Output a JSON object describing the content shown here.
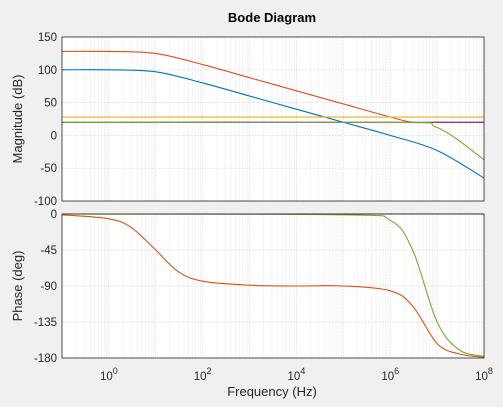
{
  "chart_data": {
    "type": "line",
    "title": "Bode Diagram",
    "xlabel": "Frequency  (Hz)",
    "x_scale": "log",
    "xlim": [
      0.1,
      100000000
    ],
    "x_ticks": [
      {
        "value": 1,
        "base": "10",
        "exp": "0"
      },
      {
        "value": 100,
        "base": "10",
        "exp": "2"
      },
      {
        "value": 10000,
        "base": "10",
        "exp": "4"
      },
      {
        "value": 1000000,
        "base": "10",
        "exp": "6"
      },
      {
        "value": 100000000,
        "base": "10",
        "exp": "8"
      }
    ],
    "grid": "minor",
    "panels": [
      {
        "ylabel": "Magnitude (dB)",
        "ylim": [
          -100,
          150
        ],
        "y_ticks": [
          "150",
          "100",
          "50",
          "0",
          "-50",
          "-100"
        ],
        "y_tick_values": [
          150,
          100,
          50,
          0,
          -50,
          -100
        ],
        "series": [
          {
            "color": "#0072bd",
            "x": [
              0.1,
              1,
              10,
              100,
              1000,
              10000,
              100000,
              1000000,
              10000000,
              100000000
            ],
            "y": [
              100,
              100,
              97,
              80,
              60,
              40,
              20,
              0,
              -23,
              -65
            ]
          },
          {
            "color": "#d95319",
            "x": [
              0.1,
              1,
              10,
              100,
              1000,
              10000,
              100000,
              1000000,
              3000000,
              10000000,
              100000000
            ],
            "y": [
              128,
              128,
              125,
              108,
              88,
              68,
              48,
              28,
              20,
              20,
              20
            ]
          },
          {
            "color": "#edb120",
            "x": [
              0.1,
              100000000
            ],
            "y": [
              28,
              28
            ]
          },
          {
            "color": "#7e2f8e",
            "x": [
              0.1,
              100000000
            ],
            "y": [
              20,
              20
            ]
          },
          {
            "color": "#77ac30",
            "x": [
              0.1,
              1000000,
              10000000,
              100000000
            ],
            "y": [
              20,
              20,
              12,
              -37
            ]
          }
        ]
      },
      {
        "ylabel": "Phase (deg)",
        "ylim": [
          -180,
          0
        ],
        "y_ticks": [
          "0",
          "-45",
          "-90",
          "-135",
          "-180"
        ],
        "y_tick_values": [
          0,
          -45,
          -90,
          -135,
          -180
        ],
        "series": [
          {
            "color": "#0072bd",
            "x": [
              0.1,
              100000000
            ],
            "y": [
              0,
              0
            ]
          },
          {
            "color": "#d95319",
            "x": [
              0.1,
              1,
              3,
              10,
              30,
              100,
              1000,
              10000,
              100000,
              1000000,
              3000000,
              10000000,
              30000000,
              100000000
            ],
            "y": [
              -1,
              -6,
              -17,
              -45,
              -72,
              -84,
              -89,
              -90,
              -90,
              -96,
              -115,
              -162,
              -175,
              -179
            ]
          },
          {
            "color": "#edb120",
            "x": [
              0.1,
              100000000
            ],
            "y": [
              0,
              0
            ]
          },
          {
            "color": "#7e2f8e",
            "x": [
              0.1,
              100000000
            ],
            "y": [
              0,
              0
            ]
          },
          {
            "color": "#77ac30",
            "x": [
              0.1,
              100000,
              1000000,
              3000000,
              10000000,
              30000000,
              100000000
            ],
            "y": [
              0,
              -1,
              -8,
              -45,
              -135,
              -170,
              -178
            ]
          }
        ]
      }
    ]
  }
}
